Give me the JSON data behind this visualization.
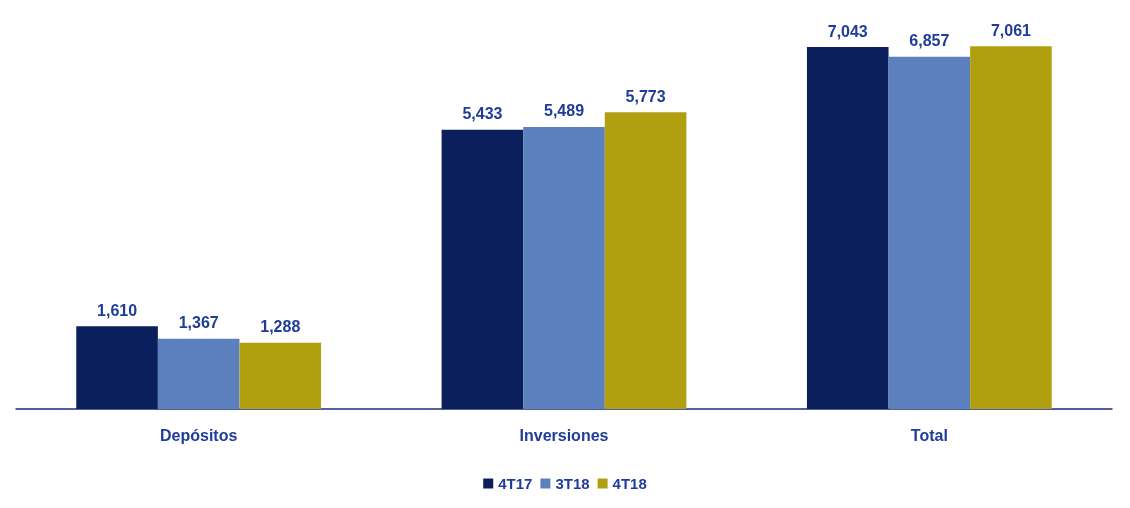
{
  "chart_data": {
    "type": "bar",
    "categories": [
      "Depósitos",
      "Inversiones",
      "Total"
    ],
    "series": [
      {
        "name": "4T17",
        "color": "#0a1f5c",
        "values": [
          1610,
          5433,
          7043
        ],
        "value_labels": [
          "1,610",
          "5,433",
          "7,043"
        ]
      },
      {
        "name": "3T18",
        "color": "#5b80bd",
        "values": [
          1367,
          5489,
          6857
        ],
        "value_labels": [
          "1,367",
          "5,489",
          "6,857"
        ]
      },
      {
        "name": "4T18",
        "color": "#b0a010",
        "values": [
          1288,
          5773,
          7061
        ],
        "value_labels": [
          "1,288",
          "5,773",
          "7,061"
        ]
      }
    ],
    "legend": "bottom"
  }
}
